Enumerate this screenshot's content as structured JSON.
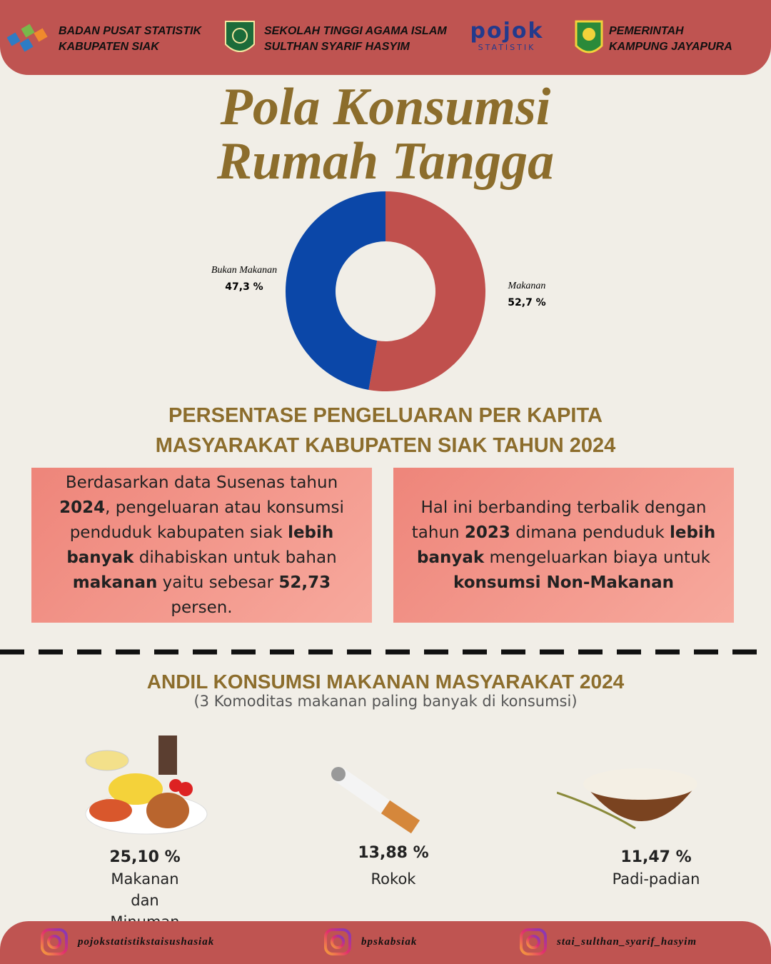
{
  "header": {
    "logos": [
      {
        "lines": [
          "BADAN PUSAT STATISTIK",
          "KABUPATEN SIAK"
        ]
      },
      {
        "lines": [
          "SEKOLAH TINGGI AGAMA ISLAM",
          "SULTHAN SYARIF HASYIM"
        ]
      },
      {
        "lines": [
          "pojok",
          "STATISTIK"
        ]
      },
      {
        "lines": [
          "PEMERINTAH",
          "KAMPUNG JAYAPURA"
        ]
      }
    ]
  },
  "title_lines": [
    "Pola Konsumsi",
    "Rumah Tangga"
  ],
  "chart_data": {
    "type": "pie",
    "donut": true,
    "categories": [
      "Makanan",
      "Bukan Makanan"
    ],
    "values": [
      52.7,
      47.3
    ],
    "value_labels": [
      "52,7 %",
      "47,3 %"
    ],
    "colors": [
      "#c0504d",
      "#0b47a8"
    ]
  },
  "section1": {
    "heading_lines": [
      "PERSENTASE PENGELUARAN PER KAPITA",
      "MASYARAKAT KABUPATEN SIAK TAHUN 2024"
    ],
    "boxes": [
      [
        {
          "text": "Berdasarkan data Susenas tahun ",
          "bold": false
        },
        {
          "text": "2024",
          "bold": true
        },
        {
          "text": ", pengeluaran atau konsumsi penduduk kabupaten siak ",
          "bold": false
        },
        {
          "text": "lebih banyak",
          "bold": true
        },
        {
          "text": " dihabiskan untuk bahan ",
          "bold": false
        },
        {
          "text": "makanan",
          "bold": true
        },
        {
          "text": " yaitu sebesar ",
          "bold": false
        },
        {
          "text": "52,73",
          "bold": true
        },
        {
          "text": " persen.",
          "bold": false
        }
      ],
      [
        {
          "text": "Hal ini berbanding terbalik dengan tahun ",
          "bold": false
        },
        {
          "text": "2023",
          "bold": true
        },
        {
          "text": " dimana penduduk ",
          "bold": false
        },
        {
          "text": "lebih banyak",
          "bold": true
        },
        {
          "text": " mengeluarkan biaya untuk ",
          "bold": false
        },
        {
          "text": "konsumsi Non-Makanan",
          "bold": true
        }
      ]
    ]
  },
  "section2": {
    "heading": "ANDIL KONSUMSI MAKANAN MASYARAKAT 2024",
    "subheading": "(3 Komoditas makanan paling banyak di konsumsi)",
    "items": [
      {
        "value": "25,10 %",
        "label": "Makanan dan Minuman Jadi"
      },
      {
        "value": "13,88 %",
        "label": "Rokok"
      },
      {
        "value": "11,47 %",
        "label": "Padi-padian"
      }
    ]
  },
  "footer": {
    "handles": [
      "pojokstatistikstaisushasiak",
      "bpskabsiak",
      "stai_sulthan_syarif_hasyim"
    ]
  }
}
